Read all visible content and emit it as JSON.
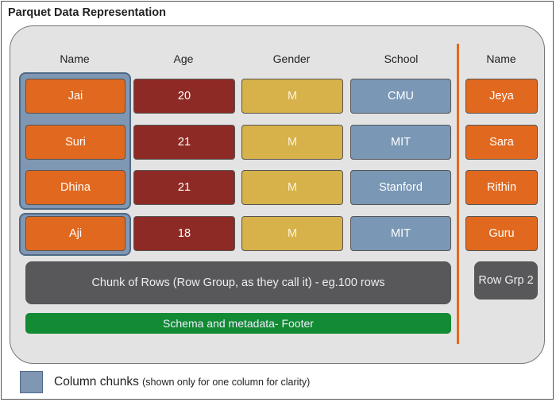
{
  "title": "Parquet Data Representation",
  "headers": {
    "name": "Name",
    "age": "Age",
    "gender": "Gender",
    "school": "School",
    "name2": "Name"
  },
  "rows": [
    {
      "name": "Jai",
      "age": "20",
      "gender": "M",
      "school": "CMU"
    },
    {
      "name": "Suri",
      "age": "21",
      "gender": "M",
      "school": "MIT"
    },
    {
      "name": "Dhina",
      "age": "21",
      "gender": "M",
      "school": "Stanford"
    },
    {
      "name": "Aji",
      "age": "18",
      "gender": "M",
      "school": "MIT"
    }
  ],
  "row_group_2": [
    "Jeya",
    "Sara",
    "Rithin",
    "Guru"
  ],
  "row_group_label": "Chunk of Rows (Row Group, as they call it) - eg.100 rows",
  "footer_label": "Schema and metadata- Footer",
  "row_grp_2_label": "Row Grp 2",
  "legend": {
    "label": "Column chunks",
    "note": "(shown only for one column for clarity)"
  },
  "colors": {
    "name": "#e1691f",
    "age": "#8e2a25",
    "gender": "#d7b24a",
    "school": "#7a97b5",
    "row_group": "#58585b",
    "footer": "#138a34",
    "column_chunk": "#7f97b2"
  }
}
